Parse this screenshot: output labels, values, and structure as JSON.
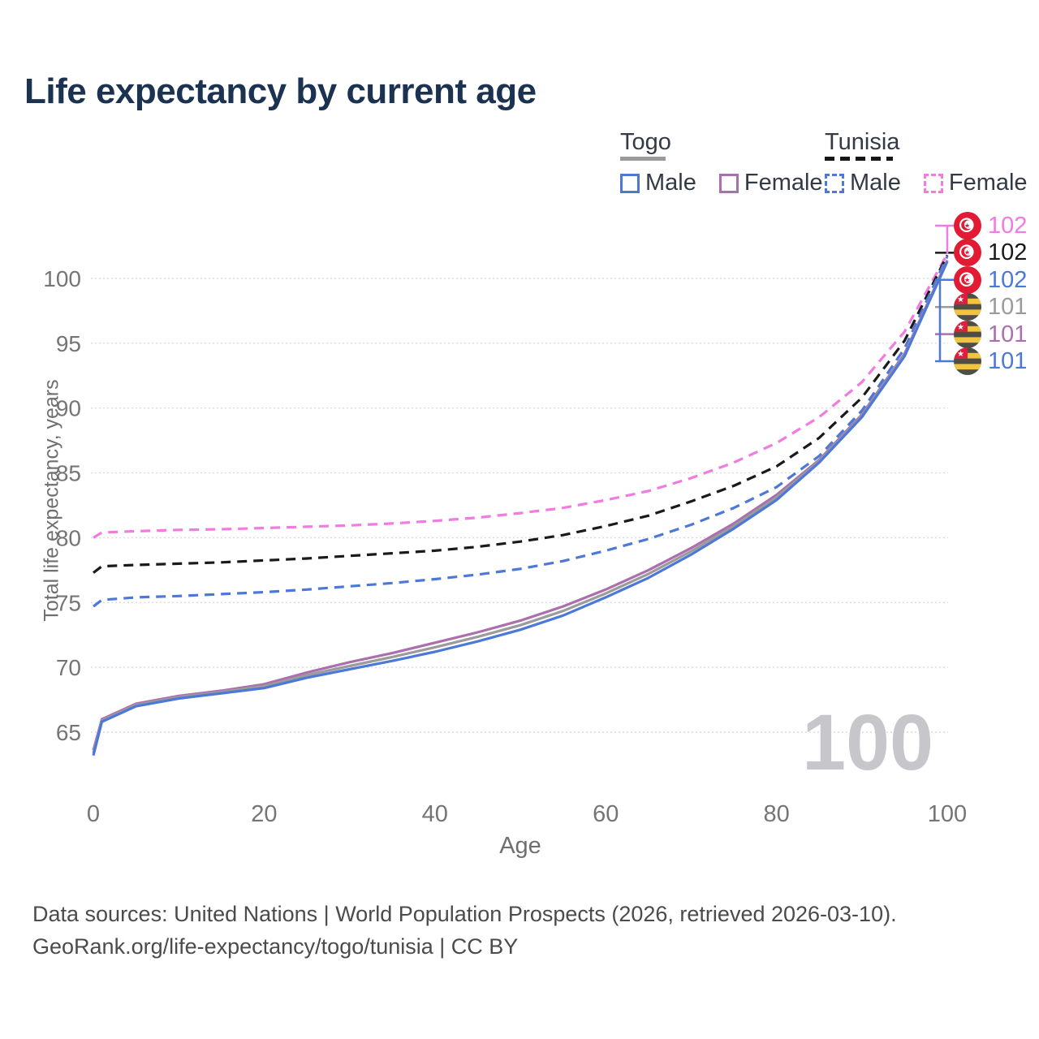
{
  "title": "Life expectancy by current age",
  "watermark": "100",
  "legend": {
    "togo": {
      "label": "Togo",
      "male": "Male",
      "female": "Female"
    },
    "tunisia": {
      "label": "Tunisia",
      "male": "Male",
      "female": "Female"
    }
  },
  "colors": {
    "togo_male": "#4c78d8",
    "togo_female": "#ab6fad",
    "togo_total": "#9b9b9b",
    "tunisia_male": "#4c78d8",
    "tunisia_female": "#f17be0",
    "tunisia_total": "#1a1a1a",
    "togo_header_rule": "#9a9a9a",
    "tunisia_header_rule": "#161616",
    "grid": "#dcdce0",
    "tick_text": "#757575"
  },
  "end_labels": [
    {
      "flag": "tunisia-flag-icon",
      "value": "102",
      "color": "#f17be0"
    },
    {
      "flag": "tunisia-flag-icon",
      "value": "102",
      "color": "#1a1a1a"
    },
    {
      "flag": "tunisia-flag-icon",
      "value": "102",
      "color": "#4c78d8"
    },
    {
      "flag": "togo-flag-icon",
      "value": "101",
      "color": "#9b9b9b"
    },
    {
      "flag": "togo-flag-icon",
      "value": "101",
      "color": "#ab6fad"
    },
    {
      "flag": "togo-flag-icon",
      "value": "101",
      "color": "#4c78d8"
    }
  ],
  "footer": {
    "line1": "Data sources: United Nations | World Population Prospects (2026, retrieved 2026-03-10).",
    "line2": "GeoRank.org/life-expectancy/togo/tunisia | CC BY"
  },
  "chart_data": {
    "type": "line",
    "title": "Life expectancy by current age",
    "xlabel": "Age",
    "ylabel": "Total life expectancy, years",
    "xlim": [
      0,
      100
    ],
    "ylim": [
      62,
      103.5
    ],
    "xticks": [
      0,
      20,
      40,
      60,
      80,
      100
    ],
    "yticks": [
      65,
      70,
      75,
      80,
      85,
      90,
      95,
      100
    ],
    "grid": true,
    "legend_position": "top-right",
    "x": [
      0,
      1,
      5,
      10,
      15,
      20,
      25,
      30,
      35,
      40,
      45,
      50,
      55,
      60,
      65,
      70,
      75,
      80,
      85,
      90,
      95,
      100
    ],
    "series": [
      {
        "name": "Tunisia Female",
        "color": "#f17be0",
        "line_style": "dashed",
        "values": [
          80.0,
          80.4,
          80.5,
          80.6,
          80.65,
          80.75,
          80.85,
          80.95,
          81.1,
          81.3,
          81.55,
          81.9,
          82.3,
          82.9,
          83.6,
          84.6,
          85.8,
          87.3,
          89.3,
          92.0,
          95.9,
          101.9
        ]
      },
      {
        "name": "Tunisia Total",
        "color": "#1a1a1a",
        "line_style": "dashed",
        "values": [
          77.3,
          77.8,
          77.9,
          78.0,
          78.1,
          78.25,
          78.4,
          78.6,
          78.8,
          79.0,
          79.3,
          79.7,
          80.2,
          80.9,
          81.7,
          82.8,
          84.0,
          85.5,
          87.7,
          90.8,
          95.2,
          101.8
        ]
      },
      {
        "name": "Tunisia Male",
        "color": "#4c78d8",
        "line_style": "dashed",
        "values": [
          74.7,
          75.2,
          75.4,
          75.5,
          75.65,
          75.8,
          76.0,
          76.25,
          76.5,
          76.8,
          77.15,
          77.6,
          78.2,
          79.0,
          79.9,
          81.0,
          82.3,
          83.9,
          86.3,
          89.8,
          94.6,
          101.7
        ]
      },
      {
        "name": "Togo Female",
        "color": "#ab6fad",
        "line_style": "solid",
        "values": [
          63.6,
          66.0,
          67.2,
          67.8,
          68.2,
          68.7,
          69.6,
          70.4,
          71.1,
          71.9,
          72.7,
          73.6,
          74.7,
          76.0,
          77.5,
          79.2,
          81.1,
          83.3,
          86.0,
          89.5,
          94.2,
          101.4
        ]
      },
      {
        "name": "Togo Total",
        "color": "#9b9b9b",
        "line_style": "solid",
        "values": [
          63.4,
          65.9,
          67.1,
          67.7,
          68.1,
          68.55,
          69.4,
          70.1,
          70.8,
          71.55,
          72.35,
          73.25,
          74.35,
          75.7,
          77.2,
          78.95,
          80.9,
          83.1,
          85.9,
          89.4,
          94.1,
          101.35
        ]
      },
      {
        "name": "Togo Male",
        "color": "#4c78d8",
        "line_style": "solid",
        "values": [
          63.2,
          65.8,
          67.0,
          67.6,
          68.0,
          68.4,
          69.2,
          69.85,
          70.5,
          71.2,
          72.0,
          72.9,
          74.0,
          75.4,
          76.9,
          78.7,
          80.7,
          82.9,
          85.8,
          89.3,
          94.0,
          101.3
        ]
      }
    ]
  }
}
